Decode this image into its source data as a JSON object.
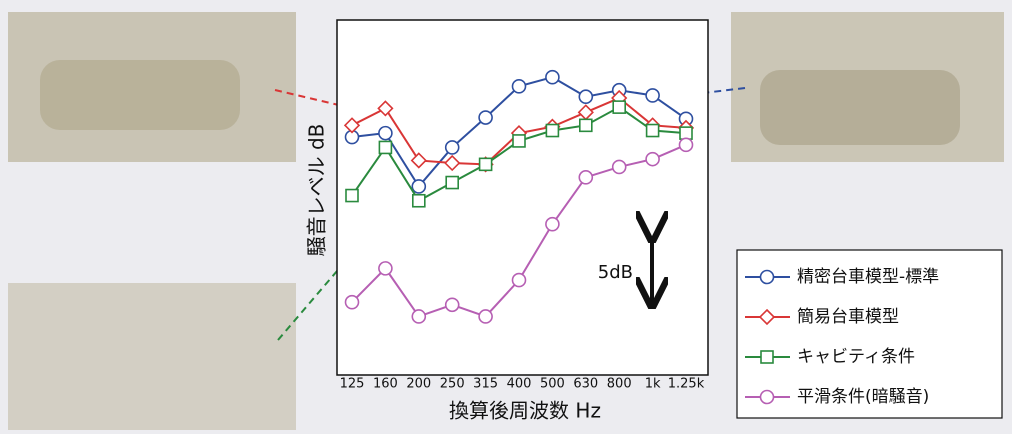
{
  "chart_data": {
    "type": "line",
    "categories": [
      "125",
      "160",
      "200",
      "250",
      "315",
      "400",
      "500",
      "630",
      "800",
      "1k",
      "1.25k"
    ],
    "x_label": "換算後周波数 Hz",
    "y_label": "騒音レベル dB",
    "annotation": "5dB",
    "ylim": [
      0,
      27.3
    ],
    "series": [
      {
        "name": "精密台車模型-標準",
        "color": "#2e4fa0",
        "marker": "circle",
        "values": [
          18.3,
          18.6,
          14.5,
          17.5,
          19.8,
          22.2,
          22.9,
          21.4,
          21.9,
          21.5,
          19.7
        ]
      },
      {
        "name": "簡易台車模型",
        "color": "#d93636",
        "marker": "diamond",
        "values": [
          19.2,
          20.5,
          16.5,
          16.3,
          16.2,
          18.6,
          19.1,
          20.2,
          21.3,
          19.2,
          19.0
        ]
      },
      {
        "name": "キャビティ条件",
        "color": "#2a8a3e",
        "marker": "square",
        "values": [
          13.8,
          17.5,
          13.4,
          14.8,
          16.2,
          18.0,
          18.8,
          19.2,
          20.6,
          18.8,
          18.6
        ]
      },
      {
        "name": "平滑条件(暗騒音)",
        "color": "#b65fb3",
        "marker": "circle",
        "values": [
          5.6,
          8.2,
          4.5,
          5.4,
          4.5,
          7.3,
          11.6,
          15.2,
          16.0,
          16.6,
          17.7
        ]
      }
    ]
  }
}
